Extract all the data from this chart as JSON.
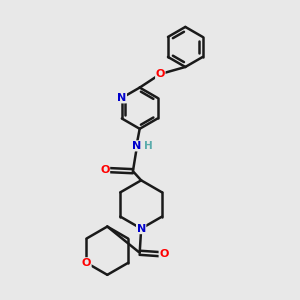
{
  "bg_color": "#e8e8e8",
  "atom_colors": {
    "N": "#0000cc",
    "O": "#ff0000",
    "H": "#5aabab"
  },
  "bond_color": "#1a1a1a",
  "bond_width": 1.8,
  "figsize": [
    3.0,
    3.0
  ],
  "dpi": 100
}
